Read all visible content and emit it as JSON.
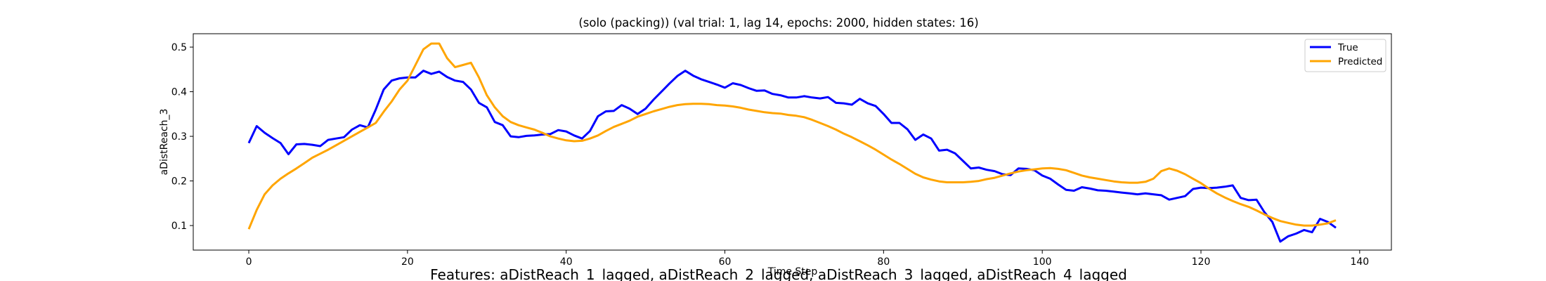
{
  "chart_data": {
    "type": "line",
    "title": "(solo (packing)) (val trial: 1, lag 14, epochs: 2000, hidden states: 16)",
    "xlabel": "Time Step",
    "ylabel": "aDistReach_3",
    "xlim": [
      -7,
      144
    ],
    "ylim": [
      0.045,
      0.53
    ],
    "xticks": [
      0,
      20,
      40,
      60,
      80,
      100,
      120,
      140
    ],
    "yticks": [
      0.1,
      0.2,
      0.3,
      0.4,
      0.5
    ],
    "xtick_labels": [
      "0",
      "20",
      "40",
      "60",
      "80",
      "100",
      "120",
      "140"
    ],
    "ytick_labels": [
      "0.1",
      "0.2",
      "0.3",
      "0.4",
      "0.5"
    ],
    "grid": false,
    "legend_position": "top-right",
    "footer": "Features: aDistReach_1_lagged, aDistReach_2_lagged, aDistReach_3_lagged, aDistReach_4_lagged",
    "series": [
      {
        "name": "True",
        "color": "#0000ff",
        "x": [
          0,
          1,
          2,
          3,
          4,
          5,
          6,
          7,
          8,
          9,
          10,
          11,
          12,
          13,
          14,
          15,
          16,
          17,
          18,
          19,
          20,
          21,
          22,
          23,
          24,
          25,
          26,
          27,
          28,
          29,
          30,
          31,
          32,
          33,
          34,
          35,
          36,
          37,
          38,
          39,
          40,
          41,
          42,
          43,
          44,
          45,
          46,
          47,
          48,
          49,
          50,
          51,
          52,
          53,
          54,
          55,
          56,
          57,
          58,
          59,
          60,
          61,
          62,
          63,
          64,
          65,
          66,
          67,
          68,
          69,
          70,
          71,
          72,
          73,
          74,
          75,
          76,
          77,
          78,
          79,
          80,
          81,
          82,
          83,
          84,
          85,
          86,
          87,
          88,
          89,
          90,
          91,
          92,
          93,
          94,
          95,
          96,
          97,
          98,
          99,
          100,
          101,
          102,
          103,
          104,
          105,
          106,
          107,
          108,
          109,
          110,
          111,
          112,
          113,
          114,
          115,
          116,
          117,
          118,
          119,
          120,
          121,
          122,
          123,
          124,
          125,
          126,
          127,
          128,
          129,
          130,
          131,
          132,
          133,
          134,
          135,
          136,
          137
        ],
        "values": [
          0.285,
          0.323,
          0.308,
          0.296,
          0.285,
          0.26,
          0.282,
          0.283,
          0.281,
          0.278,
          0.292,
          0.295,
          0.298,
          0.315,
          0.325,
          0.32,
          0.36,
          0.405,
          0.425,
          0.43,
          0.432,
          0.432,
          0.447,
          0.44,
          0.445,
          0.433,
          0.425,
          0.422,
          0.405,
          0.375,
          0.365,
          0.332,
          0.325,
          0.3,
          0.298,
          0.301,
          0.302,
          0.304,
          0.305,
          0.314,
          0.311,
          0.302,
          0.295,
          0.312,
          0.345,
          0.356,
          0.357,
          0.37,
          0.362,
          0.35,
          0.362,
          0.382,
          0.4,
          0.418,
          0.435,
          0.447,
          0.436,
          0.428,
          0.422,
          0.416,
          0.409,
          0.419,
          0.415,
          0.408,
          0.402,
          0.403,
          0.395,
          0.392,
          0.387,
          0.387,
          0.39,
          0.387,
          0.385,
          0.388,
          0.375,
          0.374,
          0.371,
          0.384,
          0.374,
          0.368,
          0.35,
          0.33,
          0.33,
          0.316,
          0.292,
          0.304,
          0.295,
          0.268,
          0.27,
          0.262,
          0.245,
          0.228,
          0.23,
          0.225,
          0.222,
          0.215,
          0.213,
          0.228,
          0.227,
          0.224,
          0.212,
          0.205,
          0.192,
          0.18,
          0.178,
          0.186,
          0.183,
          0.179,
          0.178,
          0.176,
          0.174,
          0.172,
          0.17,
          0.172,
          0.17,
          0.168,
          0.158,
          0.162,
          0.166,
          0.182,
          0.185,
          0.184,
          0.185,
          0.187,
          0.19,
          0.162,
          0.157,
          0.158,
          0.13,
          0.108,
          0.064,
          0.076,
          0.082,
          0.09,
          0.085,
          0.115,
          0.108,
          0.095
        ]
      },
      {
        "name": "Predicted",
        "color": "#ffa500",
        "x": [
          0,
          1,
          2,
          3,
          4,
          5,
          6,
          7,
          8,
          9,
          10,
          11,
          12,
          13,
          14,
          15,
          16,
          17,
          18,
          19,
          20,
          21,
          22,
          23,
          24,
          25,
          26,
          27,
          28,
          29,
          30,
          31,
          32,
          33,
          34,
          35,
          36,
          37,
          38,
          39,
          40,
          41,
          42,
          43,
          44,
          45,
          46,
          47,
          48,
          49,
          50,
          51,
          52,
          53,
          54,
          55,
          56,
          57,
          58,
          59,
          60,
          61,
          62,
          63,
          64,
          65,
          66,
          67,
          68,
          69,
          70,
          71,
          72,
          73,
          74,
          75,
          76,
          77,
          78,
          79,
          80,
          81,
          82,
          83,
          84,
          85,
          86,
          87,
          88,
          89,
          90,
          91,
          92,
          93,
          94,
          95,
          96,
          97,
          98,
          99,
          100,
          101,
          102,
          103,
          104,
          105,
          106,
          107,
          108,
          109,
          110,
          111,
          112,
          113,
          114,
          115,
          116,
          117,
          118,
          119,
          120,
          121,
          122,
          123,
          124,
          125,
          126,
          127,
          128,
          129,
          130,
          131,
          132,
          133,
          134,
          135,
          136,
          137
        ],
        "values": [
          0.092,
          0.135,
          0.17,
          0.19,
          0.205,
          0.217,
          0.228,
          0.24,
          0.252,
          0.261,
          0.27,
          0.28,
          0.29,
          0.3,
          0.31,
          0.32,
          0.33,
          0.355,
          0.378,
          0.405,
          0.425,
          0.46,
          0.495,
          0.508,
          0.508,
          0.475,
          0.455,
          0.46,
          0.465,
          0.432,
          0.392,
          0.365,
          0.345,
          0.332,
          0.325,
          0.32,
          0.315,
          0.308,
          0.3,
          0.295,
          0.291,
          0.289,
          0.29,
          0.295,
          0.302,
          0.312,
          0.321,
          0.328,
          0.335,
          0.344,
          0.35,
          0.356,
          0.361,
          0.366,
          0.37,
          0.372,
          0.373,
          0.373,
          0.372,
          0.37,
          0.369,
          0.367,
          0.364,
          0.36,
          0.357,
          0.354,
          0.352,
          0.351,
          0.348,
          0.346,
          0.343,
          0.337,
          0.33,
          0.323,
          0.315,
          0.306,
          0.298,
          0.289,
          0.28,
          0.27,
          0.259,
          0.248,
          0.238,
          0.227,
          0.216,
          0.208,
          0.203,
          0.199,
          0.197,
          0.197,
          0.197,
          0.198,
          0.2,
          0.204,
          0.207,
          0.212,
          0.217,
          0.221,
          0.224,
          0.226,
          0.228,
          0.229,
          0.227,
          0.224,
          0.218,
          0.212,
          0.208,
          0.205,
          0.202,
          0.199,
          0.197,
          0.196,
          0.196,
          0.198,
          0.205,
          0.222,
          0.228,
          0.223,
          0.215,
          0.205,
          0.195,
          0.183,
          0.172,
          0.163,
          0.155,
          0.148,
          0.142,
          0.134,
          0.125,
          0.117,
          0.11,
          0.106,
          0.102,
          0.1,
          0.1,
          0.102,
          0.105,
          0.112
        ]
      }
    ]
  }
}
